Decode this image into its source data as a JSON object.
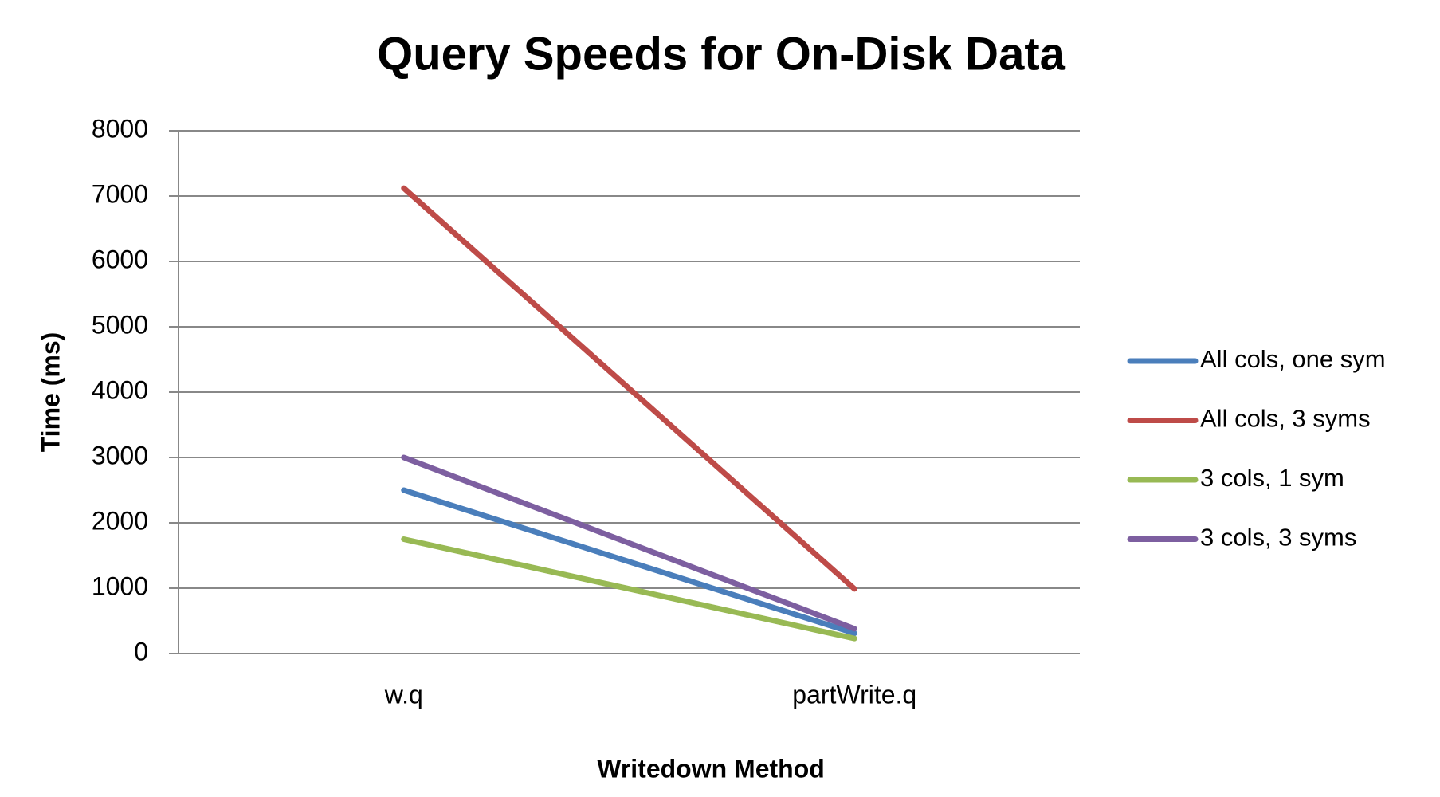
{
  "chart_data": {
    "type": "line",
    "title": "Query Speeds for On-Disk Data",
    "x_label": "Writedown Method",
    "y_label": "Time (ms)",
    "categories": [
      "w.q",
      "partWrite.q"
    ],
    "series": [
      {
        "name": "All cols, one sym",
        "color": "#4a7ebb",
        "values": [
          2500,
          310
        ]
      },
      {
        "name": "All cols, 3 syms",
        "color": "#be4b48",
        "values": [
          7120,
          990
        ]
      },
      {
        "name": "3 cols, 1 sym",
        "color": "#98b954",
        "values": [
          1750,
          230
        ]
      },
      {
        "name": "3 cols, 3 syms",
        "color": "#7d5fa0",
        "values": [
          3000,
          380
        ]
      }
    ],
    "ylim": [
      0,
      8000
    ],
    "yticks": [
      0,
      1000,
      2000,
      3000,
      4000,
      5000,
      6000,
      7000,
      8000
    ],
    "grid": true,
    "legend": "right"
  }
}
